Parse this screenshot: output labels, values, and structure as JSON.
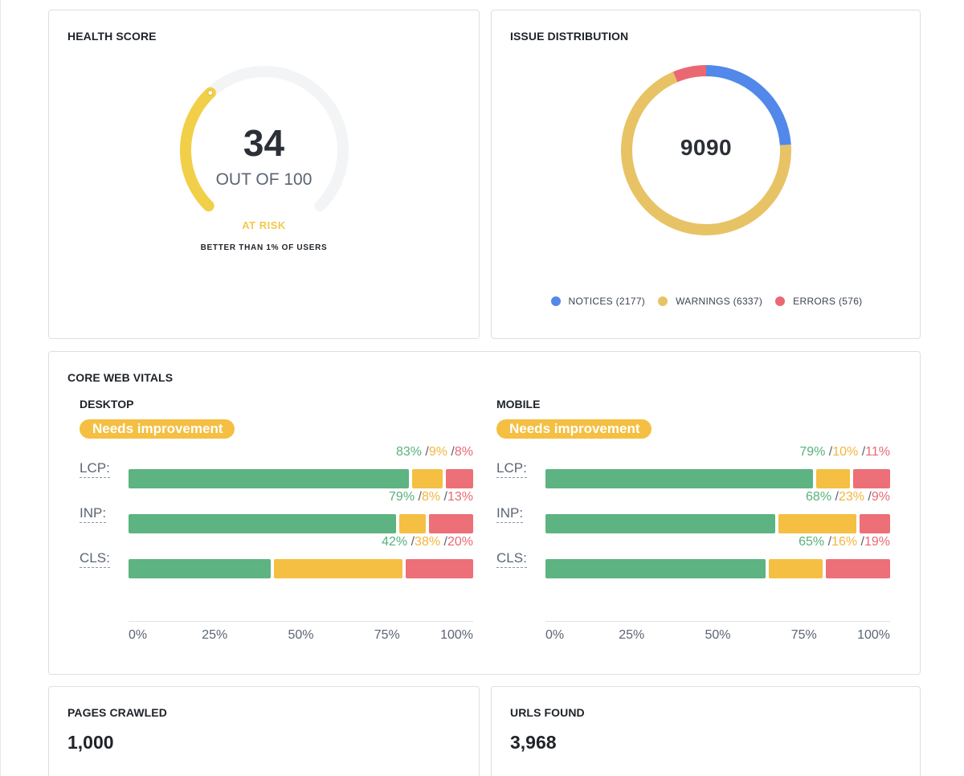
{
  "health": {
    "title": "HEALTH SCORE",
    "score": 34,
    "score_max": 100,
    "score_text": "34",
    "out_of_text": "OUT OF 100",
    "status": "AT RISK",
    "comparison": "BETTER THAN 1% OF USERS",
    "colors": {
      "fill": "#f2cf48",
      "track": "#f2f4f6",
      "status": "#f2c94c"
    }
  },
  "issues": {
    "title": "ISSUE DISTRIBUTION",
    "total_text": "9090",
    "legend": [
      {
        "label": "NOTICES (2177)",
        "color": "#5188ea"
      },
      {
        "label": "WARNINGS (6337)",
        "color": "#e7c366"
      },
      {
        "label": "ERRORS (576)",
        "color": "#ea6872"
      }
    ],
    "chart_data": {
      "type": "pie",
      "labels": [
        "NOTICES",
        "WARNINGS",
        "ERRORS"
      ],
      "values": [
        2177,
        6337,
        576
      ],
      "colors": [
        "#5188ea",
        "#e7c366",
        "#ea6872"
      ],
      "donut": true
    }
  },
  "cwv": {
    "title": "CORE WEB VITALS",
    "axis_ticks": [
      "0%",
      "25%",
      "50%",
      "75%",
      "100%"
    ],
    "colors": {
      "good": "#5db381",
      "needs_improvement": "#f4bf42",
      "poor": "#ed6f78"
    },
    "desktop": {
      "title": "DESKTOP",
      "status": "Needs improvement",
      "metrics": [
        {
          "label": "LCP:",
          "good": 83,
          "mid": 9,
          "poor": 8,
          "good_text": "83%",
          "mid_text": "9%",
          "poor_text": "8%"
        },
        {
          "label": "INP:",
          "good": 79,
          "mid": 8,
          "poor": 13,
          "good_text": "79%",
          "mid_text": "8%",
          "poor_text": "13%"
        },
        {
          "label": "CLS:",
          "good": 42,
          "mid": 38,
          "poor": 20,
          "good_text": "42%",
          "mid_text": "38%",
          "poor_text": "20%"
        }
      ]
    },
    "mobile": {
      "title": "MOBILE",
      "status": "Needs improvement",
      "metrics": [
        {
          "label": "LCP:",
          "good": 79,
          "mid": 10,
          "poor": 11,
          "good_text": "79%",
          "mid_text": "10%",
          "poor_text": "11%"
        },
        {
          "label": "INP:",
          "good": 68,
          "mid": 23,
          "poor": 9,
          "good_text": "68%",
          "mid_text": "23%",
          "poor_text": "9%"
        },
        {
          "label": "CLS:",
          "good": 65,
          "mid": 16,
          "poor": 19,
          "good_text": "65%",
          "mid_text": "16%",
          "poor_text": "19%"
        }
      ]
    },
    "chart_data": [
      {
        "type": "bar",
        "orientation": "horizontal",
        "stacked": true,
        "title": "DESKTOP",
        "categories": [
          "LCP",
          "INP",
          "CLS"
        ],
        "series": [
          {
            "values": [
              83,
              79,
              42
            ]
          },
          {
            "values": [
              9,
              8,
              38
            ]
          },
          {
            "values": [
              8,
              13,
              20
            ]
          }
        ],
        "xlim": [
          0,
          100
        ],
        "x_ticks": [
          "0%",
          "25%",
          "50%",
          "75%",
          "100%"
        ]
      },
      {
        "type": "bar",
        "orientation": "horizontal",
        "stacked": true,
        "title": "MOBILE",
        "categories": [
          "LCP",
          "INP",
          "CLS"
        ],
        "series": [
          {
            "values": [
              79,
              68,
              65
            ]
          },
          {
            "values": [
              10,
              23,
              16
            ]
          },
          {
            "values": [
              11,
              9,
              19
            ]
          }
        ],
        "xlim": [
          0,
          100
        ],
        "x_ticks": [
          "0%",
          "25%",
          "50%",
          "75%",
          "100%"
        ]
      }
    ]
  },
  "pages": {
    "title": "PAGES CRAWLED",
    "value": "1,000"
  },
  "urls": {
    "title": "URLS FOUND",
    "value": "3,968"
  }
}
